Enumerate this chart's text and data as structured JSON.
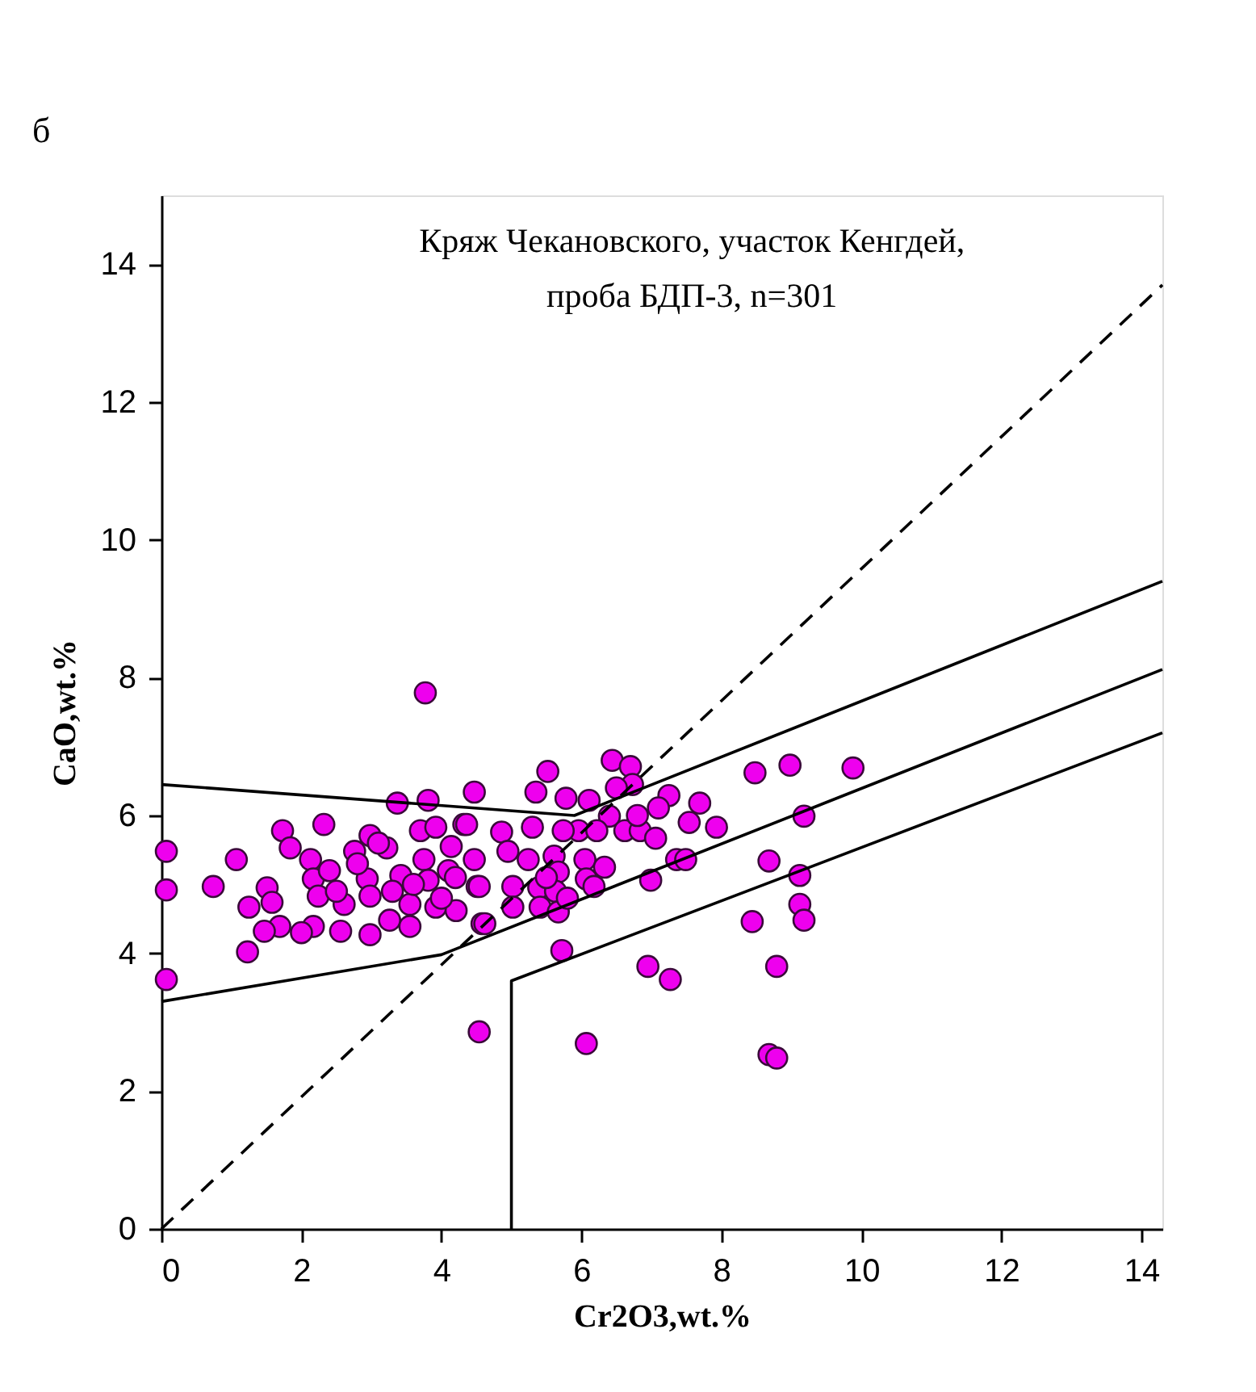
{
  "chart_data": {
    "type": "scatter",
    "xlabel": "Cr2O3,wt.%",
    "ylabel": "CaO,wt.%",
    "annotations": [
      "б",
      "Кряж Чекановского, участок Кенгдей,\nпроба БДП-3, n=301"
    ],
    "xlim": [
      0,
      14.3
    ],
    "ylim": [
      0,
      15
    ],
    "xticks": [
      0,
      2,
      4,
      6,
      8,
      10,
      12,
      14
    ],
    "yticks": [
      0,
      2,
      4,
      6,
      8,
      10,
      12,
      14
    ],
    "grid": false,
    "marker": "circle",
    "series": [
      {
        "color": "#ee00ee",
        "x": [
          0.07,
          0.07,
          0.07,
          0.74,
          1.07,
          2.32,
          1.73,
          1.84,
          1.25,
          1.23,
          1.51,
          1.58,
          1.69,
          1.47,
          2.13,
          2.17,
          2.24,
          2.17,
          2.56,
          2.98,
          2.98,
          3.37,
          3.81,
          4.47,
          3.77,
          4.54,
          2.76,
          3.22,
          2.94,
          3.42,
          3.7,
          3.92,
          3.75,
          4.14,
          3.81,
          4.1,
          4.32,
          4.47,
          3.55,
          3.26,
          3.92,
          4.21,
          4.58,
          2.61,
          3.55,
          2.98,
          4.51,
          6.44,
          6.7,
          5.52,
          5.35,
          5.78,
          6.11,
          6.73,
          7.25,
          7.69,
          7.93,
          7.54,
          7.1,
          6.4,
          6.62,
          6.84,
          7.06,
          5.96,
          6.22,
          5.74,
          5.3,
          4.86,
          4.36,
          4.95,
          5.24,
          5.61,
          6.05,
          6.33,
          5.67,
          6.07,
          5.39,
          5.63,
          6.18,
          5.02,
          4.54,
          5.02,
          5.41,
          5.67,
          4.62,
          7.36,
          7.49,
          6.99,
          5.72,
          6.95,
          7.27,
          6.07,
          8.48,
          8.98,
          9.88,
          9.18,
          8.68,
          9.12,
          9.12,
          9.18,
          8.44,
          8.79,
          8.68,
          8.79,
          2.0,
          2.5,
          2.8,
          3.3,
          3.6,
          4.0,
          4.2,
          3.1,
          2.4,
          5.5,
          5.8,
          6.5,
          6.8
        ],
        "values": [
          5.48,
          4.92,
          3.62,
          4.97,
          5.36,
          5.87,
          5.78,
          5.53,
          4.67,
          4.02,
          4.95,
          4.74,
          4.39,
          4.32,
          5.36,
          5.08,
          4.83,
          4.39,
          4.32,
          4.27,
          5.71,
          6.18,
          6.22,
          6.34,
          7.78,
          2.86,
          5.48,
          5.53,
          5.08,
          5.13,
          5.78,
          5.83,
          5.36,
          5.55,
          5.06,
          5.2,
          5.87,
          5.36,
          4.71,
          4.48,
          4.67,
          4.62,
          4.43,
          4.71,
          4.39,
          4.83,
          4.97,
          6.8,
          6.71,
          6.64,
          6.34,
          6.25,
          6.22,
          6.45,
          6.29,
          6.18,
          5.83,
          5.9,
          6.11,
          5.99,
          5.78,
          5.78,
          5.67,
          5.78,
          5.78,
          5.78,
          5.83,
          5.76,
          5.87,
          5.48,
          5.36,
          5.41,
          5.36,
          5.25,
          5.18,
          5.08,
          4.95,
          4.9,
          4.97,
          4.97,
          4.97,
          4.67,
          4.67,
          4.6,
          4.43,
          5.36,
          5.36,
          5.06,
          4.04,
          3.81,
          3.62,
          2.69,
          6.62,
          6.73,
          6.69,
          5.99,
          5.34,
          5.13,
          4.71,
          4.48,
          4.46,
          3.81,
          2.53,
          2.48,
          4.3,
          4.9,
          5.3,
          4.9,
          5.0,
          4.8,
          5.1,
          5.6,
          5.2,
          5.1,
          4.8,
          6.4,
          6.0
        ]
      },
      {
        "type": "line",
        "marker": "none",
        "color": "#000000",
        "line_style": "dashed",
        "x": [
          0,
          14.3
        ],
        "values": [
          0,
          13.7
        ]
      },
      {
        "type": "line",
        "marker": "none",
        "color": "#000000",
        "line_style": "solid",
        "x": [
          0,
          5.9,
          14.3
        ],
        "values": [
          6.45,
          6.0,
          9.4
        ]
      },
      {
        "type": "line",
        "marker": "none",
        "color": "#000000",
        "line_style": "solid",
        "x": [
          0,
          4.0,
          14.3
        ],
        "values": [
          3.3,
          3.98,
          8.12
        ]
      },
      {
        "type": "line",
        "marker": "none",
        "color": "#000000",
        "line_style": "solid",
        "x": [
          5,
          5,
          14.3
        ],
        "values": [
          0,
          3.6,
          7.2
        ]
      }
    ]
  }
}
